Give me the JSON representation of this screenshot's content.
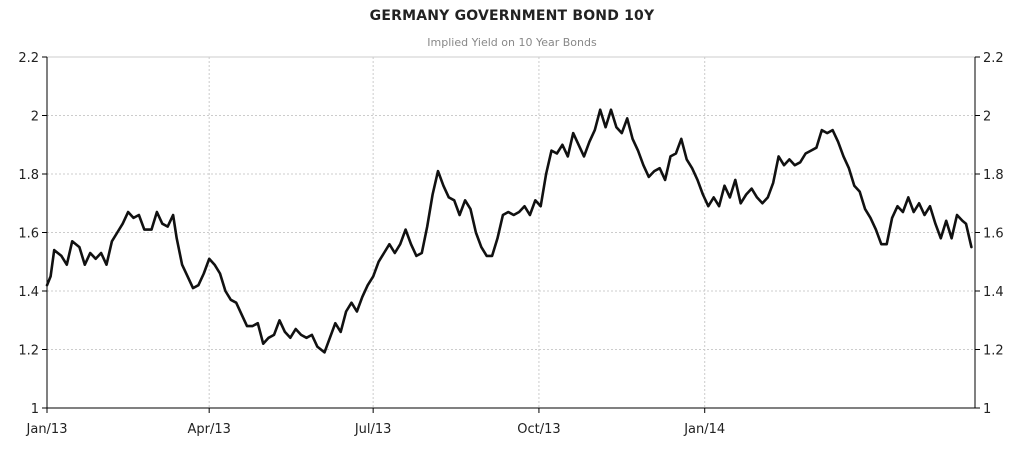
{
  "chart_data": {
    "type": "line",
    "title": "GERMANY GOVERNMENT BOND 10Y",
    "subtitle": "Implied Yield on 10 Year Bonds",
    "xlabel": "",
    "ylabel": "",
    "ylim": [
      1,
      2.2
    ],
    "yticks": [
      "1",
      "1.2",
      "1.4",
      "1.6",
      "1.8",
      "2",
      "2.2"
    ],
    "xticks": [
      "Jan/13",
      "Apr/13",
      "Jul/13",
      "Oct/13",
      "Jan/14"
    ],
    "grid": true,
    "colors": {
      "line": "#111111",
      "grid": "#cccccc",
      "axis": "#000000"
    },
    "series": [
      {
        "values": [
          [
            "2013-01-01",
            1.42
          ],
          [
            "2013-01-03",
            1.45
          ],
          [
            "2013-01-05",
            1.54
          ],
          [
            "2013-01-09",
            1.52
          ],
          [
            "2013-01-12",
            1.49
          ],
          [
            "2013-01-15",
            1.57
          ],
          [
            "2013-01-19",
            1.55
          ],
          [
            "2013-01-22",
            1.49
          ],
          [
            "2013-01-25",
            1.53
          ],
          [
            "2013-01-28",
            1.51
          ],
          [
            "2013-01-31",
            1.53
          ],
          [
            "2013-02-03",
            1.49
          ],
          [
            "2013-02-06",
            1.57
          ],
          [
            "2013-02-09",
            1.6
          ],
          [
            "2013-02-12",
            1.63
          ],
          [
            "2013-02-15",
            1.67
          ],
          [
            "2013-02-18",
            1.65
          ],
          [
            "2013-02-21",
            1.66
          ],
          [
            "2013-02-24",
            1.61
          ],
          [
            "2013-02-28",
            1.61
          ],
          [
            "2013-03-03",
            1.67
          ],
          [
            "2013-03-06",
            1.63
          ],
          [
            "2013-03-09",
            1.62
          ],
          [
            "2013-03-12",
            1.66
          ],
          [
            "2013-03-14",
            1.58
          ],
          [
            "2013-03-17",
            1.49
          ],
          [
            "2013-03-20",
            1.45
          ],
          [
            "2013-03-23",
            1.41
          ],
          [
            "2013-03-26",
            1.42
          ],
          [
            "2013-03-29",
            1.46
          ],
          [
            "2013-04-01",
            1.51
          ],
          [
            "2013-04-04",
            1.49
          ],
          [
            "2013-04-07",
            1.46
          ],
          [
            "2013-04-10",
            1.4
          ],
          [
            "2013-04-13",
            1.37
          ],
          [
            "2013-04-16",
            1.36
          ],
          [
            "2013-04-19",
            1.32
          ],
          [
            "2013-04-22",
            1.28
          ],
          [
            "2013-04-25",
            1.28
          ],
          [
            "2013-04-28",
            1.29
          ],
          [
            "2013-05-01",
            1.22
          ],
          [
            "2013-05-04",
            1.24
          ],
          [
            "2013-05-07",
            1.25
          ],
          [
            "2013-05-10",
            1.3
          ],
          [
            "2013-05-13",
            1.26
          ],
          [
            "2013-05-16",
            1.24
          ],
          [
            "2013-05-19",
            1.27
          ],
          [
            "2013-05-22",
            1.25
          ],
          [
            "2013-05-25",
            1.24
          ],
          [
            "2013-05-28",
            1.25
          ],
          [
            "2013-05-31",
            1.21
          ],
          [
            "2013-06-02",
            1.2
          ],
          [
            "2013-06-04",
            1.19
          ],
          [
            "2013-06-07",
            1.24
          ],
          [
            "2013-06-10",
            1.29
          ],
          [
            "2013-06-13",
            1.26
          ],
          [
            "2013-06-16",
            1.33
          ],
          [
            "2013-06-19",
            1.36
          ],
          [
            "2013-06-22",
            1.33
          ],
          [
            "2013-06-25",
            1.38
          ],
          [
            "2013-06-28",
            1.42
          ],
          [
            "2013-07-01",
            1.45
          ],
          [
            "2013-07-04",
            1.5
          ],
          [
            "2013-07-07",
            1.53
          ],
          [
            "2013-07-10",
            1.56
          ],
          [
            "2013-07-13",
            1.53
          ],
          [
            "2013-07-16",
            1.56
          ],
          [
            "2013-07-19",
            1.61
          ],
          [
            "2013-07-22",
            1.56
          ],
          [
            "2013-07-25",
            1.52
          ],
          [
            "2013-07-28",
            1.53
          ],
          [
            "2013-07-31",
            1.62
          ],
          [
            "2013-08-03",
            1.73
          ],
          [
            "2013-08-06",
            1.81
          ],
          [
            "2013-08-09",
            1.76
          ],
          [
            "2013-08-12",
            1.72
          ],
          [
            "2013-08-15",
            1.71
          ],
          [
            "2013-08-18",
            1.66
          ],
          [
            "2013-08-21",
            1.71
          ],
          [
            "2013-08-24",
            1.68
          ],
          [
            "2013-08-27",
            1.6
          ],
          [
            "2013-08-30",
            1.55
          ],
          [
            "2013-09-02",
            1.52
          ],
          [
            "2013-09-05",
            1.52
          ],
          [
            "2013-09-08",
            1.58
          ],
          [
            "2013-09-11",
            1.66
          ],
          [
            "2013-09-14",
            1.67
          ],
          [
            "2013-09-17",
            1.66
          ],
          [
            "2013-09-20",
            1.67
          ],
          [
            "2013-09-23",
            1.69
          ],
          [
            "2013-09-26",
            1.66
          ],
          [
            "2013-09-29",
            1.71
          ],
          [
            "2013-10-02",
            1.69
          ],
          [
            "2013-10-05",
            1.8
          ],
          [
            "2013-10-08",
            1.88
          ],
          [
            "2013-10-11",
            1.87
          ],
          [
            "2013-10-14",
            1.9
          ],
          [
            "2013-10-17",
            1.86
          ],
          [
            "2013-10-20",
            1.94
          ],
          [
            "2013-10-23",
            1.9
          ],
          [
            "2013-10-26",
            1.86
          ],
          [
            "2013-10-29",
            1.91
          ],
          [
            "2013-11-01",
            1.95
          ],
          [
            "2013-11-04",
            2.02
          ],
          [
            "2013-11-07",
            1.96
          ],
          [
            "2013-11-10",
            2.02
          ],
          [
            "2013-11-13",
            1.96
          ],
          [
            "2013-11-16",
            1.94
          ],
          [
            "2013-11-19",
            1.99
          ],
          [
            "2013-11-22",
            1.92
          ],
          [
            "2013-11-25",
            1.88
          ],
          [
            "2013-11-28",
            1.83
          ],
          [
            "2013-12-01",
            1.79
          ],
          [
            "2013-12-04",
            1.81
          ],
          [
            "2013-12-07",
            1.82
          ],
          [
            "2013-12-10",
            1.78
          ],
          [
            "2013-12-13",
            1.86
          ],
          [
            "2013-12-16",
            1.87
          ],
          [
            "2013-12-19",
            1.92
          ],
          [
            "2013-12-22",
            1.85
          ],
          [
            "2013-12-25",
            1.82
          ],
          [
            "2013-12-28",
            1.78
          ],
          [
            "2013-12-31",
            1.73
          ],
          [
            "2014-01-03",
            1.69
          ],
          [
            "2014-01-06",
            1.72
          ],
          [
            "2014-01-09",
            1.69
          ],
          [
            "2014-01-12",
            1.76
          ],
          [
            "2014-01-15",
            1.72
          ],
          [
            "2014-01-18",
            1.78
          ],
          [
            "2014-01-21",
            1.7
          ],
          [
            "2014-01-24",
            1.73
          ],
          [
            "2014-01-27",
            1.75
          ],
          [
            "2014-01-30",
            1.72
          ],
          [
            "2014-02-02",
            1.7
          ],
          [
            "2014-02-05",
            1.72
          ],
          [
            "2014-02-08",
            1.77
          ],
          [
            "2014-02-11",
            1.86
          ],
          [
            "2014-02-14",
            1.83
          ],
          [
            "2014-02-17",
            1.85
          ],
          [
            "2014-02-20",
            1.83
          ],
          [
            "2014-02-23",
            1.84
          ],
          [
            "2014-02-26",
            1.87
          ],
          [
            "2014-03-01",
            1.88
          ],
          [
            "2014-03-04",
            1.89
          ],
          [
            "2014-03-07",
            1.95
          ],
          [
            "2014-03-10",
            1.94
          ],
          [
            "2014-03-13",
            1.95
          ],
          [
            "2014-03-16",
            1.91
          ],
          [
            "2014-03-19",
            1.86
          ],
          [
            "2014-03-22",
            1.82
          ],
          [
            "2014-03-25",
            1.76
          ],
          [
            "2014-03-28",
            1.74
          ],
          [
            "2014-03-31",
            1.68
          ],
          [
            "2014-04-03",
            1.65
          ],
          [
            "2014-04-06",
            1.61
          ],
          [
            "2014-04-09",
            1.56
          ],
          [
            "2014-04-12",
            1.56
          ],
          [
            "2014-04-15",
            1.65
          ],
          [
            "2014-04-18",
            1.69
          ],
          [
            "2014-04-21",
            1.67
          ],
          [
            "2014-04-24",
            1.72
          ],
          [
            "2014-04-27",
            1.67
          ],
          [
            "2014-04-30",
            1.7
          ],
          [
            "2014-05-03",
            1.66
          ],
          [
            "2014-05-06",
            1.69
          ],
          [
            "2014-05-09",
            1.63
          ],
          [
            "2014-05-12",
            1.58
          ],
          [
            "2014-05-15",
            1.64
          ],
          [
            "2014-05-18",
            1.58
          ],
          [
            "2014-05-21",
            1.66
          ],
          [
            "2014-05-24",
            1.64
          ],
          [
            "2014-05-26",
            1.63
          ],
          [
            "2014-05-29",
            1.55
          ]
        ]
      }
    ]
  }
}
